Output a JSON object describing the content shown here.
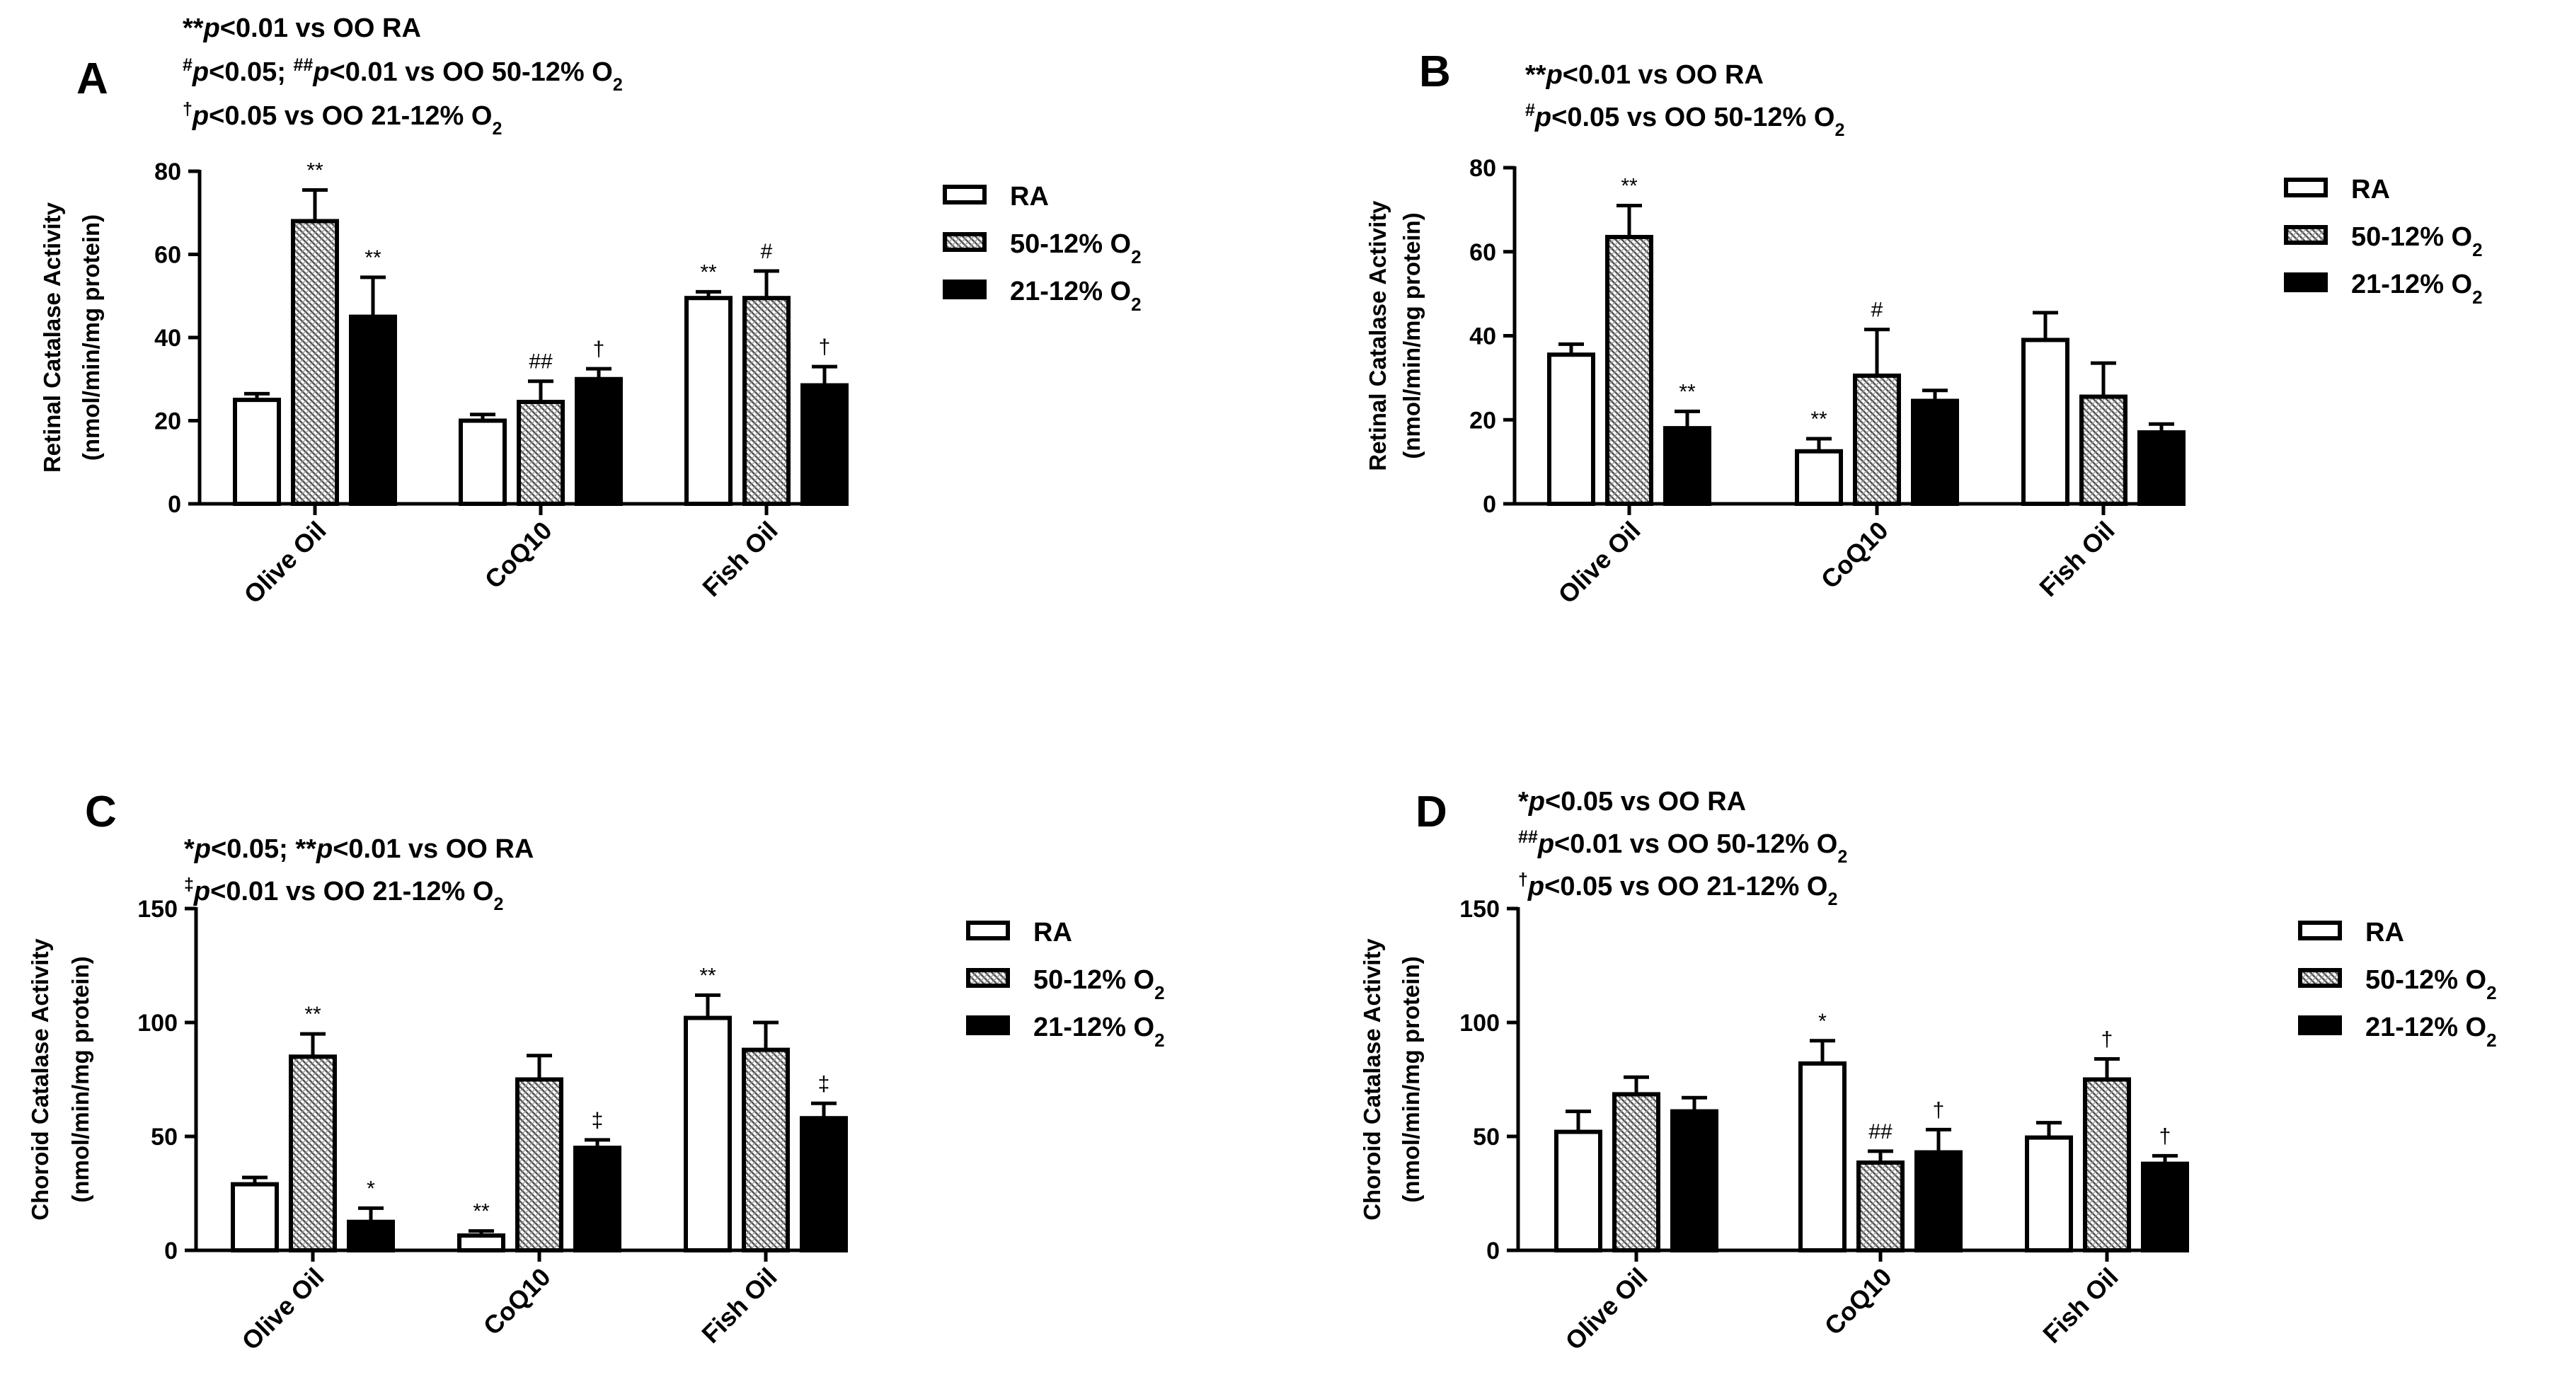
{
  "colors": {
    "ink": "#000000",
    "paper": "#ffffff",
    "hatch": "#777777"
  },
  "legend_items": [
    {
      "label": "RA",
      "pattern": "open"
    },
    {
      "label": "50-12% O",
      "sub": "2",
      "pattern": "hatch"
    },
    {
      "label": "21-12% O",
      "sub": "2",
      "pattern": "solid"
    }
  ],
  "chart_data": [
    {
      "type": "bar",
      "panel": "A",
      "notes": [
        [
          {
            "t": "**"
          },
          {
            "t": "p",
            "i": true
          },
          {
            "t": "<0.01 vs OO RA"
          }
        ],
        [
          {
            "t": "#",
            "sup": true
          },
          {
            "t": "p",
            "i": true
          },
          {
            "t": "<0.05; "
          },
          {
            "t": "##",
            "sup": true
          },
          {
            "t": "p",
            "i": true
          },
          {
            "t": "<0.01 vs OO 50-12% O"
          },
          {
            "t": "2",
            "sub": true
          }
        ],
        [
          {
            "t": "†",
            "sup": true
          },
          {
            "t": "p",
            "i": true
          },
          {
            "t": "<0.05 vs OO 21-12% O"
          },
          {
            "t": "2",
            "sub": true
          }
        ]
      ],
      "ylabel": [
        "Retinal Catalase Activity",
        "(nmol/min/mg protein)"
      ],
      "ylim": [
        0,
        80
      ],
      "yticks": [
        0,
        20,
        40,
        60,
        80
      ],
      "categories": [
        "Olive Oil",
        "CoQ10",
        "Fish Oil"
      ],
      "series": [
        {
          "name": "RA",
          "values": [
            25,
            20,
            49.5
          ],
          "errors": [
            1.5,
            1.5,
            1.5
          ],
          "marks": [
            "",
            "",
            "**"
          ]
        },
        {
          "name": "50-12% O2",
          "values": [
            68,
            24.5,
            49.5
          ],
          "errors": [
            7.5,
            5,
            6.5
          ],
          "marks": [
            "**",
            "##",
            "#"
          ]
        },
        {
          "name": "21-12% O2",
          "values": [
            45,
            30,
            28.5
          ],
          "errors": [
            9.5,
            2.5,
            4.5
          ],
          "marks": [
            "**",
            "†",
            "†"
          ]
        }
      ]
    },
    {
      "type": "bar",
      "panel": "B",
      "notes": [
        [
          {
            "t": "**"
          },
          {
            "t": "p",
            "i": true
          },
          {
            "t": "<0.01 vs OO RA"
          }
        ],
        [
          {
            "t": "#",
            "sup": true
          },
          {
            "t": "p",
            "i": true
          },
          {
            "t": "<0.05 vs OO 50-12% O"
          },
          {
            "t": "2",
            "sub": true
          }
        ]
      ],
      "ylabel": [
        "Retinal Catalase Activity",
        "(nmol/min/mg protein)"
      ],
      "ylim": [
        0,
        80
      ],
      "yticks": [
        0,
        20,
        40,
        60,
        80
      ],
      "categories": [
        "Olive Oil",
        "CoQ10",
        "Fish Oil"
      ],
      "series": [
        {
          "name": "RA",
          "values": [
            35.5,
            12.5,
            39
          ],
          "errors": [
            2.5,
            3,
            6.5
          ],
          "marks": [
            "",
            "**",
            ""
          ]
        },
        {
          "name": "50-12% O2",
          "values": [
            63.5,
            30.5,
            25.5
          ],
          "errors": [
            7.5,
            11,
            8
          ],
          "marks": [
            "**",
            "#",
            ""
          ]
        },
        {
          "name": "21-12% O2",
          "values": [
            18,
            24.5,
            17
          ],
          "errors": [
            4,
            2.5,
            2
          ],
          "marks": [
            "**",
            "",
            ""
          ]
        }
      ]
    },
    {
      "type": "bar",
      "panel": "C",
      "notes": [
        [
          {
            "t": "*"
          },
          {
            "t": "p",
            "i": true
          },
          {
            "t": "<0.05; **"
          },
          {
            "t": "p",
            "i": true
          },
          {
            "t": "<0.01 vs OO RA"
          }
        ],
        [
          {
            "t": "‡",
            "sup": true
          },
          {
            "t": "p",
            "i": true
          },
          {
            "t": "<0.01 vs OO 21-12% O"
          },
          {
            "t": "2",
            "sub": true
          }
        ]
      ],
      "ylabel": [
        "Choroid Catalase Activity",
        "(nmol/min/mg protein)"
      ],
      "ylim": [
        0,
        150
      ],
      "yticks": [
        0,
        50,
        100,
        150
      ],
      "categories": [
        "Olive Oil",
        "CoQ10",
        "Fish Oil"
      ],
      "series": [
        {
          "name": "RA",
          "values": [
            29,
            6.5,
            102
          ],
          "errors": [
            3,
            2,
            10
          ],
          "marks": [
            "",
            "**",
            "**"
          ]
        },
        {
          "name": "50-12% O2",
          "values": [
            85,
            75,
            88
          ],
          "errors": [
            10,
            10.5,
            12
          ],
          "marks": [
            "**",
            "",
            ""
          ]
        },
        {
          "name": "21-12% O2",
          "values": [
            12.5,
            45,
            58
          ],
          "errors": [
            6,
            3.5,
            6.5
          ],
          "marks": [
            "*",
            "‡",
            "‡"
          ]
        }
      ]
    },
    {
      "type": "bar",
      "panel": "D",
      "notes": [
        [
          {
            "t": "*"
          },
          {
            "t": "p",
            "i": true
          },
          {
            "t": "<0.05 vs OO RA"
          }
        ],
        [
          {
            "t": "##",
            "sup": true
          },
          {
            "t": "p",
            "i": true
          },
          {
            "t": "<0.01 vs OO 50-12% O"
          },
          {
            "t": "2",
            "sub": true
          }
        ],
        [
          {
            "t": "†",
            "sup": true
          },
          {
            "t": "p",
            "i": true
          },
          {
            "t": "<0.05 vs OO 21-12% O"
          },
          {
            "t": "2",
            "sub": true
          }
        ]
      ],
      "ylabel": [
        "Choroid Catalase Activity",
        "(nmol/min/mg protein)"
      ],
      "ylim": [
        0,
        150
      ],
      "yticks": [
        0,
        50,
        100,
        150
      ],
      "categories": [
        "Olive Oil",
        "CoQ10",
        "Fish Oil"
      ],
      "series": [
        {
          "name": "RA",
          "values": [
            52,
            82,
            49.5
          ],
          "errors": [
            9,
            10,
            6.5
          ],
          "marks": [
            "",
            "*",
            ""
          ]
        },
        {
          "name": "50-12% O2",
          "values": [
            68.5,
            38.5,
            75
          ],
          "errors": [
            7.5,
            5,
            9
          ],
          "marks": [
            "",
            "##",
            "†"
          ]
        },
        {
          "name": "21-12% O2",
          "values": [
            61,
            43,
            38
          ],
          "errors": [
            6,
            10,
            3.5
          ],
          "marks": [
            "",
            "†",
            "†"
          ]
        }
      ]
    }
  ]
}
